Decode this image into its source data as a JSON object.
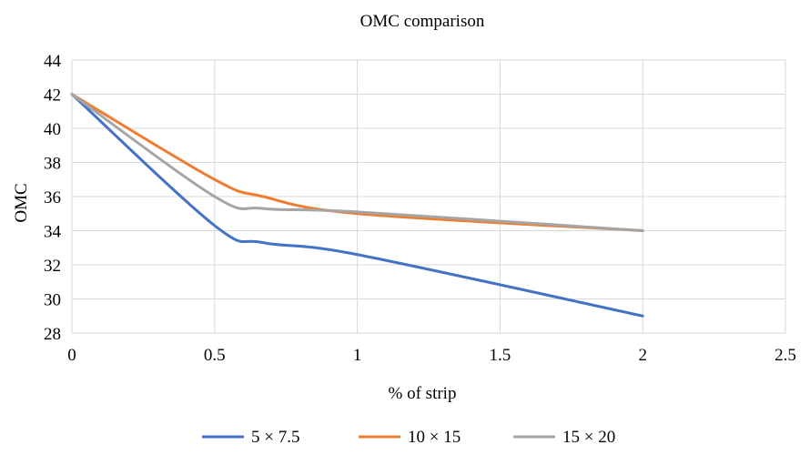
{
  "chart_data": {
    "type": "line",
    "title": "OMC comparison",
    "xlabel": "% of strip",
    "ylabel": "OMC",
    "xlim": [
      0,
      2.5
    ],
    "ylim": [
      28,
      44
    ],
    "x_ticks": [
      "0",
      "0.5",
      "1",
      "1.5",
      "2",
      "2.5"
    ],
    "y_ticks": [
      "28",
      "30",
      "32",
      "34",
      "36",
      "38",
      "40",
      "42",
      "44"
    ],
    "grid": true,
    "legend_position": "bottom",
    "smooth": true,
    "series": [
      {
        "name": "5 × 7.5",
        "color": "#4472c4",
        "x": [
          0,
          0.5,
          0.67,
          1,
          2
        ],
        "y": [
          42,
          34.3,
          33.3,
          32.6,
          29
        ]
      },
      {
        "name": "10 × 15",
        "color": "#ed7d31",
        "x": [
          0,
          0.5,
          0.67,
          1,
          2
        ],
        "y": [
          42,
          37,
          36,
          35,
          34
        ]
      },
      {
        "name": "15 × 20",
        "color": "#a5a5a5",
        "x": [
          0,
          0.5,
          0.67,
          1,
          2
        ],
        "y": [
          42,
          36,
          35.3,
          35.1,
          34
        ]
      }
    ]
  }
}
